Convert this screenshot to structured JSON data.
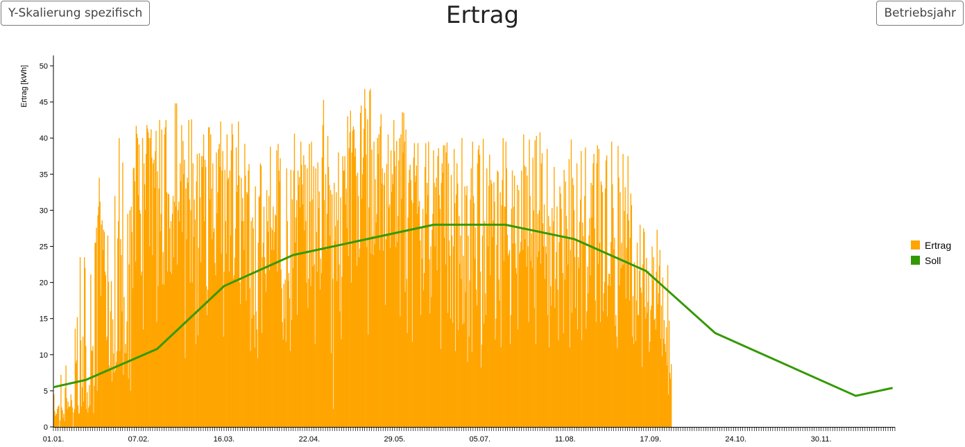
{
  "buttons": {
    "left_label": "Y-Skalierung spezifisch",
    "right_label": "Betriebsjahr"
  },
  "colors": {
    "ertrag": "#FFA500",
    "soll": "#339900"
  },
  "chart_data": {
    "type": "bar",
    "title": "Ertrag",
    "ylabel": "Ertrag [kWh]",
    "xlabel": "",
    "ylim": [
      0,
      52
    ],
    "yticks": [
      0,
      5,
      10,
      15,
      20,
      25,
      30,
      35,
      40,
      45,
      50
    ],
    "x_labels": [
      {
        "day": 1,
        "label": "01.01."
      },
      {
        "day": 38,
        "label": "07.02."
      },
      {
        "day": 75,
        "label": "16.03."
      },
      {
        "day": 112,
        "label": "22.04."
      },
      {
        "day": 149,
        "label": "29.05."
      },
      {
        "day": 186,
        "label": "05.07."
      },
      {
        "day": 223,
        "label": "11.08."
      },
      {
        "day": 260,
        "label": "17.09."
      },
      {
        "day": 297,
        "label": "24.10."
      },
      {
        "day": 334,
        "label": "30.11."
      }
    ],
    "days_in_year": 365,
    "legend_position": "right",
    "series": [
      {
        "name": "Ertrag",
        "type": "bar",
        "start_day": 1,
        "values": [
          4.5,
          2.2,
          1.5,
          1.8,
          1.8,
          2.5,
          2.8,
          3,
          0,
          0.9,
          7.2,
          2.7,
          2.3,
          1.2,
          1.8,
          0.8,
          5.4,
          8.5,
          4,
          2.5,
          3.5,
          2.7,
          2.8,
          2.9,
          4.5,
          3.7,
          2.7,
          0,
          2,
          2.5,
          13.6,
          8.8,
          9.2,
          15.2,
          3,
          1.8,
          1.9,
          23.5,
          12,
          2.8,
          5.5,
          12.5,
          3.5,
          23.5,
          22,
          11.2,
          2.5,
          4.8,
          2,
          2.7,
          5.8,
          3,
          21.1,
          10.6,
          10.5,
          11.2,
          1.9,
          5.7,
          25.5,
          25.5,
          27.6,
          5,
          29.3,
          30.5,
          34.5,
          31.2,
          18.1,
          28,
          28.6,
          24.5,
          27.3,
          27,
          21.5,
          21,
          12,
          12.5,
          26.5,
          20.1,
          8.5,
          8,
          16,
          20.2,
          6.3,
          14.9,
          10.2,
          7.5,
          32,
          7.8,
          9,
          10.5,
          26.1,
          28.5,
          40,
          10.5,
          26,
          23.8,
          16,
          36.6,
          7.2,
          18,
          10.2,
          11.5,
          10.2,
          14.6,
          29.5,
          6.7,
          22.5,
          30,
          5,
          30.5,
          27,
          19.2,
          35.8,
          35.9,
          34,
          22.9,
          41.7,
          40.6,
          40,
          32.1,
          39.1,
          30,
          29.5,
          21,
          21.5,
          40,
          13.5,
          36.5,
          33.6,
          30.1,
          37.8,
          41.8,
          41.3,
          40.8,
          40,
          25,
          40,
          41.2,
          37.3,
          23.8,
          36.5,
          37,
          33.1,
          38.2,
          41,
          14.5,
          35.4,
          19.5,
          33,
          42.5,
          27.1,
          29.5,
          41.2,
          19.8,
          24.2,
          19.7,
          40.5,
          41.5,
          42.5,
          32.5,
          21.5,
          32.3,
          32.2,
          27.5,
          21.5,
          28.5,
          21.2,
          29.5,
          32,
          23.5,
          31.2,
          44.8,
          30.5,
          44.8,
          22.5,
          30,
          31.2,
          28.5,
          36.5,
          34,
          41.8,
          27,
          39.6,
          35,
          37,
          9.5,
          33,
          26,
          34.5,
          33.8,
          42.5,
          31.5,
          20,
          30,
          42.6,
          20,
          36.5,
          26.3,
          31.5,
          28.7,
          11.5,
          34,
          37.8,
          12.7,
          24.8,
          37.9,
          31.8,
          22.8,
          37.5,
          36,
          37.5,
          40.5,
          28.5,
          37,
          36,
          19.5,
          15.5,
          19,
          41.5,
          41.5,
          31.5,
          40.5,
          33,
          26,
          36.5,
          27,
          27.5,
          22.7,
          21,
          38,
          29.6,
          32.5,
          38.5,
          39.2,
          36,
          42.3,
          24,
          35.5,
          38.2,
          12.5,
          21.5,
          35.6,
          28.5,
          24,
          40.5,
          34.2,
          34.5,
          21.5,
          35.5,
          26.5,
          38.3,
          42,
          40.5,
          20.5,
          21,
          23.4,
          27.5,
          38.7,
          32.5,
          33.5,
          42.3,
          34.8,
          20,
          17,
          34.5,
          28.5,
          31.7,
          28.5,
          24.5,
          39.2,
          34.8,
          17.5,
          32.5,
          32.2,
          35.5,
          36.4,
          19.2,
          10.5,
          28.5,
          15,
          29,
          27.5,
          15.5,
          11,
          33.3,
          16,
          13.5,
          9.5,
          25.5,
          31.8,
          32,
          36.5,
          36.2,
          13,
          23.5,
          25.5,
          30.5,
          23.5,
          21.2,
          18.7,
          32.8,
          28.5,
          27,
          32,
          21.7,
          38.8,
          27.6,
          24.5,
          27.3,
          30.5,
          24.5,
          27,
          29.4,
          29.2,
          38.3,
          21.5,
          39.2,
          35.5,
          34,
          37.2,
          21.8,
          19.2,
          14.5,
          12.1,
          19.8,
          15,
          20.4,
          11.8,
          35.8,
          28.5,
          20.2,
          21.3,
          17.8,
          10.5,
          35.6,
          14.8,
          31.5,
          22,
          35.5,
          40.6,
          25.5,
          29,
          31.4,
          15.5,
          35.5,
          33.5,
          34.6,
          30.4,
          39.5,
          36.3,
          33.6,
          30.8,
          37.6,
          27.2,
          36.3,
          28.5,
          20,
          35.8,
          16.5,
          20.5,
          39.2,
          31.2,
          19.5,
          39.5,
          31.5,
          22.2,
          36.1,
          22.5,
          11.5,
          35.8,
          27,
          21.5,
          36.6,
          30.3,
          32.6,
          19,
          23.3,
          21.3,
          37.3,
          41.8,
          45.3,
          31.4,
          24.8,
          35,
          24.5,
          29.5,
          40.3,
          36,
          33.5,
          26.5,
          32.8,
          10.2,
          32.2,
          20.5,
          2.5,
          33.8,
          25.7,
          27.8,
          32.5,
          20.2,
          28.6,
          38,
          22.5,
          16,
          31.8,
          12.1,
          20.8,
          37.5,
          35.5,
          35.5,
          37.5,
          30.8,
          33,
          27.5,
          43,
          23.7,
          38.6,
          40.8,
          43.8,
          20,
          38,
          41,
          41.6,
          41.2,
          37.4,
          38.6,
          34.8,
          22.3,
          35.2,
          32,
          23.5,
          24.7,
          43.5,
          44.5,
          31.6,
          35,
          37.3,
          41.3,
          46.8,
          44.1,
          37.7,
          24.9,
          42.6,
          12.8,
          30.4,
          46.5,
          46.8,
          24,
          38.4,
          26.5,
          23.8,
          39.5,
          25.3,
          34.3,
          28.3,
          29.5,
          40,
          37.8,
          40.5,
          24.5,
          41.6,
          43.3,
          33.7,
          35.8,
          24.4,
          33.5,
          35.2,
          16.9,
          26,
          36.4,
          26.7,
          40.5,
          30.4,
          30.8,
          24.8,
          38.3,
          32.5,
          35,
          33.6,
          42.5,
          38.2,
          36.1,
          24.9,
          39.6,
          25.6,
          29.2,
          36.9,
          40,
          15.3,
          40.5,
          31.6,
          43.6,
          38,
          43.5,
          39.5,
          18.7,
          41.2,
          20.5,
          13,
          29,
          33.8,
          35.6,
          36.3,
          34.2,
          31.4,
          11.8,
          31,
          37.3,
          39.3,
          33.9,
          34.8,
          36.2,
          29.5,
          39.3,
          30.5,
          31.3,
          25.8,
          15.5,
          27.6,
          23.3,
          30.2,
          18.9,
          21.3,
          36,
          39.3,
          29.5,
          33.8,
          32.1,
          39.5,
          23.2,
          15.7,
          25,
          18,
          27.3,
          29.5,
          38.3,
          33.8,
          25,
          33.2,
          34.5,
          21.7,
          37.5,
          38.6,
          32.1,
          30.2,
          10.8,
          33.8,
          36.5,
          35.2,
          39,
          26.2,
          39,
          22.5,
          38,
          39.4,
          15.8,
          36.5,
          25.8,
          23.7,
          15,
          34.9,
          26.5,
          14.4,
          25,
          38.5,
          31,
          10.5,
          32.2,
          36.5,
          33.7,
          13.4,
          29.2,
          22.6,
          26.5,
          20.5,
          40,
          14.2,
          23.7,
          14.4,
          33.3,
          18.7,
          32.1,
          33.4,
          9,
          26.5,
          12.5,
          20.3,
          31.5,
          35.8,
          10.4,
          39.5,
          32,
          31,
          23.3,
          27.6,
          19,
          16.8,
          36.5,
          38.4,
          39,
          37.7,
          21.5,
          8.2,
          11.4,
          26.5,
          39.9,
          14.3,
          28.5,
          18.5,
          15.5,
          35.8,
          27.8,
          25,
          33.4,
          37.7,
          21,
          34.2,
          33.7,
          26.3,
          28.6,
          33.9,
          31.2,
          12.1,
          15,
          25.2,
          35.5,
          35.3,
          20.4,
          17.5,
          32.5,
          11,
          30.7,
          34.2,
          40,
          23,
          30.5,
          30.5,
          39.5,
          35.8,
          26.6,
          23.7,
          24,
          24.5,
          11.5,
          15.5,
          30.2,
          35.5,
          25.4,
          30.5,
          34.8,
          25.4,
          22,
          21.2,
          33.5,
          13.5,
          32.8,
          24,
          24.3,
          25.6,
          35.5,
          27.5,
          24.5,
          40.5,
          36.2,
          26,
          36,
          22.2,
          34.8,
          25,
          14.5,
          39.8,
          32,
          23,
          26.8,
          22,
          37.3,
          30,
          16.5,
          39.7,
          11.5,
          40.3,
          23.5,
          29.5,
          24.3,
          30,
          40.8,
          22.6,
          36.5,
          37.9,
          28.2,
          25,
          30.8,
          20.5,
          25,
          24,
          38.5,
          15.5,
          29.2,
          11,
          27.8,
          19.5,
          16.8,
          30.3,
          26.8,
          28.5,
          36,
          16.5,
          20.5,
          24.2,
          30.5,
          19,
          12,
          25.6,
          33.3,
          32.3,
          30.2,
          26.2,
          21.3,
          13,
          35.6,
          20.4,
          34,
          29.2,
          27.4,
          22.5,
          26,
          37.1,
          11,
          24.5,
          39.8,
          15.8,
          34.5,
          33.5,
          30,
          23.5,
          16.5,
          25.9,
          36.5,
          13.5,
          23.5,
          22,
          28.4,
          31.5,
          38.2,
          12,
          28.3,
          26.4,
          25.5,
          32,
          38.7,
          13.6,
          16,
          22.2,
          18.5,
          26.5,
          28.9,
          21,
          33.8,
          29,
          33.5,
          36.5,
          37.8,
          27.5,
          17.5,
          14.5,
          36.5,
          39,
          22.6,
          38.5,
          25.5,
          14.5,
          34,
          33.5,
          32.5,
          16,
          18.5,
          20.1,
          33,
          36.9,
          37.6,
          15.3,
          19.6,
          21.2,
          21.2,
          19.5,
          25.6,
          39.5,
          33.6,
          30.3,
          24.6,
          26.2,
          14,
          15.5,
          12.5,
          10.9,
          38.9,
          34.5,
          19.6,
          32.5,
          22,
          25.5,
          22.4,
          37.8,
          22.5,
          29.9,
          33.2,
          17.8,
          24.8,
          29.5,
          37.5,
          28.6,
          17.5,
          26.2,
          32.3,
          30.7,
          12.5,
          18.1,
          11.5,
          22.8,
          22,
          11.9,
          17.5,
          25.5,
          15.5,
          15.5,
          21.6,
          28,
          19.3,
          18.6,
          8.3,
          22.5,
          27.5,
          27,
          16.6,
          15,
          23.4,
          15.8,
          17.3,
          21.6,
          10.4,
          11.8,
          16.2,
          16.8,
          25,
          20.3,
          23.5,
          14.8,
          15,
          13.5,
          21.5,
          27.3,
          17,
          18.5,
          22.3,
          24.5,
          12.2,
          16.8,
          9.8,
          20.7,
          12.2,
          14.8,
          11.5,
          10.4,
          13.8,
          8.5,
          22.4,
          4.5,
          14.7,
          7.5,
          6.7,
          8.7
        ]
      },
      {
        "name": "Soll",
        "type": "line",
        "points": [
          {
            "day": 1,
            "value": 5.5
          },
          {
            "day": 15,
            "value": 6.5
          },
          {
            "day": 46,
            "value": 10.8
          },
          {
            "day": 75,
            "value": 19.5
          },
          {
            "day": 105,
            "value": 23.8
          },
          {
            "day": 166,
            "value": 28
          },
          {
            "day": 197,
            "value": 28
          },
          {
            "day": 227,
            "value": 26
          },
          {
            "day": 258,
            "value": 21.6
          },
          {
            "day": 288,
            "value": 13
          },
          {
            "day": 349,
            "value": 4.3
          },
          {
            "day": 365,
            "value": 5.4
          }
        ]
      }
    ]
  }
}
